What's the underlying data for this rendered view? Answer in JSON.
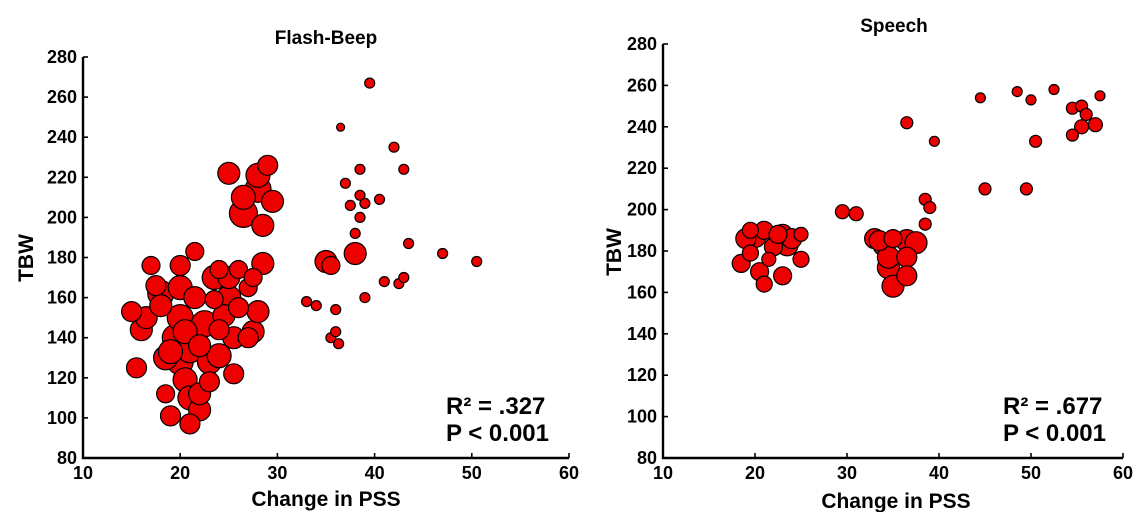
{
  "chart_data": [
    {
      "type": "scatter",
      "title": "Flash-Beep",
      "xlabel": "Change in PSS",
      "ylabel": "TBW",
      "xlim": [
        10,
        60
      ],
      "ylim": [
        80,
        280
      ],
      "xticks": [
        10,
        20,
        30,
        40,
        50,
        60
      ],
      "yticks": [
        80,
        100,
        120,
        140,
        160,
        180,
        200,
        220,
        240,
        260,
        280
      ],
      "stat_line1": "R² = .327",
      "stat_line2": "P < 0.001",
      "grid": false,
      "points": [
        [
          15,
          153,
          10
        ],
        [
          15.5,
          125,
          10
        ],
        [
          16,
          144,
          11
        ],
        [
          16.5,
          150,
          11
        ],
        [
          17,
          176,
          9
        ],
        [
          17.5,
          166,
          10
        ],
        [
          18,
          162,
          13
        ],
        [
          18,
          156,
          11
        ],
        [
          18.5,
          130,
          12
        ],
        [
          18.5,
          112,
          9
        ],
        [
          19,
          101,
          10
        ],
        [
          19,
          133,
          12
        ],
        [
          19.5,
          140,
          13
        ],
        [
          20,
          176,
          10
        ],
        [
          20,
          165,
          12
        ],
        [
          20,
          150,
          13
        ],
        [
          20,
          128,
          13
        ],
        [
          20.5,
          143,
          12
        ],
        [
          20.5,
          119,
          12
        ],
        [
          21,
          97,
          10
        ],
        [
          21,
          110,
          12
        ],
        [
          21,
          134,
          13
        ],
        [
          21.5,
          160,
          11
        ],
        [
          21.5,
          183,
          9
        ],
        [
          22,
          104,
          11
        ],
        [
          22,
          136,
          11
        ],
        [
          22.5,
          147,
          13
        ],
        [
          22,
          112,
          11
        ],
        [
          23,
          128,
          12
        ],
        [
          23,
          118,
          10
        ],
        [
          23.5,
          159,
          9
        ],
        [
          23.5,
          170,
          12
        ],
        [
          24,
          131,
          12
        ],
        [
          24,
          144,
          10
        ],
        [
          24.5,
          151,
          11
        ],
        [
          24,
          174,
          9
        ],
        [
          25,
          160,
          12
        ],
        [
          25,
          170,
          11
        ],
        [
          25.5,
          140,
          11
        ],
        [
          25.5,
          122,
          10
        ],
        [
          26,
          155,
          10
        ],
        [
          26,
          174,
          9
        ],
        [
          26.5,
          202,
          14
        ],
        [
          26.5,
          210,
          12
        ],
        [
          27,
          140,
          10
        ],
        [
          27,
          165,
          9
        ],
        [
          27.5,
          170,
          9
        ],
        [
          25,
          222,
          11
        ],
        [
          27.5,
          143,
          11
        ],
        [
          28,
          153,
          11
        ],
        [
          28,
          221,
          12
        ],
        [
          28,
          214,
          13
        ],
        [
          28.5,
          196,
          11
        ],
        [
          28.5,
          177,
          11
        ],
        [
          29,
          226,
          10
        ],
        [
          29.5,
          208,
          11
        ],
        [
          33,
          158,
          5
        ],
        [
          34,
          156,
          5
        ],
        [
          35,
          178,
          11
        ],
        [
          35.5,
          176,
          9
        ],
        [
          35.5,
          140,
          5
        ],
        [
          36,
          154,
          5
        ],
        [
          36,
          143,
          5
        ],
        [
          36.3,
          137,
          5
        ],
        [
          36.5,
          245,
          4
        ],
        [
          37,
          217,
          5
        ],
        [
          37.5,
          206,
          5
        ],
        [
          38,
          182,
          11
        ],
        [
          38,
          192,
          5
        ],
        [
          38.5,
          224,
          5
        ],
        [
          38.5,
          211,
          5
        ],
        [
          38.5,
          200,
          5
        ],
        [
          39,
          160,
          5
        ],
        [
          39,
          207,
          5
        ],
        [
          39.5,
          267,
          5
        ],
        [
          40.5,
          209,
          5
        ],
        [
          41,
          168,
          5
        ],
        [
          42,
          235,
          5
        ],
        [
          42.5,
          167,
          5
        ],
        [
          43,
          224,
          5
        ],
        [
          43,
          170,
          5
        ],
        [
          43.5,
          187,
          5
        ],
        [
          47,
          182,
          5
        ],
        [
          50.5,
          178,
          5
        ]
      ]
    },
    {
      "type": "scatter",
      "title": "Speech",
      "xlabel": "Change in PSS",
      "ylabel": "TBW",
      "xlim": [
        10,
        60
      ],
      "ylim": [
        80,
        280
      ],
      "xticks": [
        10,
        20,
        30,
        40,
        50,
        60
      ],
      "yticks": [
        80,
        100,
        120,
        140,
        160,
        180,
        200,
        220,
        240,
        260,
        280
      ],
      "stat_line1": "R² = .677",
      "stat_line2": "P < 0.001",
      "grid": false,
      "points": [
        [
          18.5,
          174,
          9
        ],
        [
          19,
          186,
          10
        ],
        [
          19.5,
          190,
          8
        ],
        [
          19.5,
          179,
          8
        ],
        [
          20,
          187,
          11
        ],
        [
          20.5,
          170,
          9
        ],
        [
          21,
          164,
          8
        ],
        [
          21,
          190,
          9
        ],
        [
          21.5,
          176,
          7
        ],
        [
          22,
          182,
          9
        ],
        [
          22.5,
          188,
          9
        ],
        [
          23,
          168,
          9
        ],
        [
          23,
          188,
          10
        ],
        [
          23.5,
          183,
          11
        ],
        [
          24,
          186,
          10
        ],
        [
          25,
          176,
          8
        ],
        [
          25,
          188,
          7
        ],
        [
          29.5,
          199,
          7
        ],
        [
          31,
          198,
          7
        ],
        [
          33,
          186,
          10
        ],
        [
          33.5,
          185,
          10
        ],
        [
          34,
          183,
          11
        ],
        [
          34.5,
          172,
          11
        ],
        [
          34.5,
          177,
          11
        ],
        [
          35,
          163,
          11
        ],
        [
          35,
          186,
          9
        ],
        [
          36.5,
          185,
          11
        ],
        [
          36.5,
          177,
          10
        ],
        [
          36.5,
          168,
          10
        ],
        [
          37.5,
          184,
          11
        ],
        [
          36.5,
          242,
          6
        ],
        [
          38.5,
          205,
          6
        ],
        [
          38.5,
          193,
          6
        ],
        [
          39.5,
          233,
          5
        ],
        [
          39,
          201,
          6
        ],
        [
          44.5,
          254,
          5
        ],
        [
          45,
          210,
          6
        ],
        [
          48.5,
          257,
          5
        ],
        [
          49.5,
          210,
          6
        ],
        [
          50,
          253,
          5
        ],
        [
          50.5,
          233,
          6
        ],
        [
          52.5,
          258,
          5
        ],
        [
          54.5,
          236,
          6
        ],
        [
          54.5,
          249,
          6
        ],
        [
          55.5,
          240,
          7
        ],
        [
          55.5,
          250,
          6
        ],
        [
          56,
          246,
          6
        ],
        [
          57,
          241,
          7
        ],
        [
          57.5,
          255,
          5
        ]
      ]
    }
  ]
}
